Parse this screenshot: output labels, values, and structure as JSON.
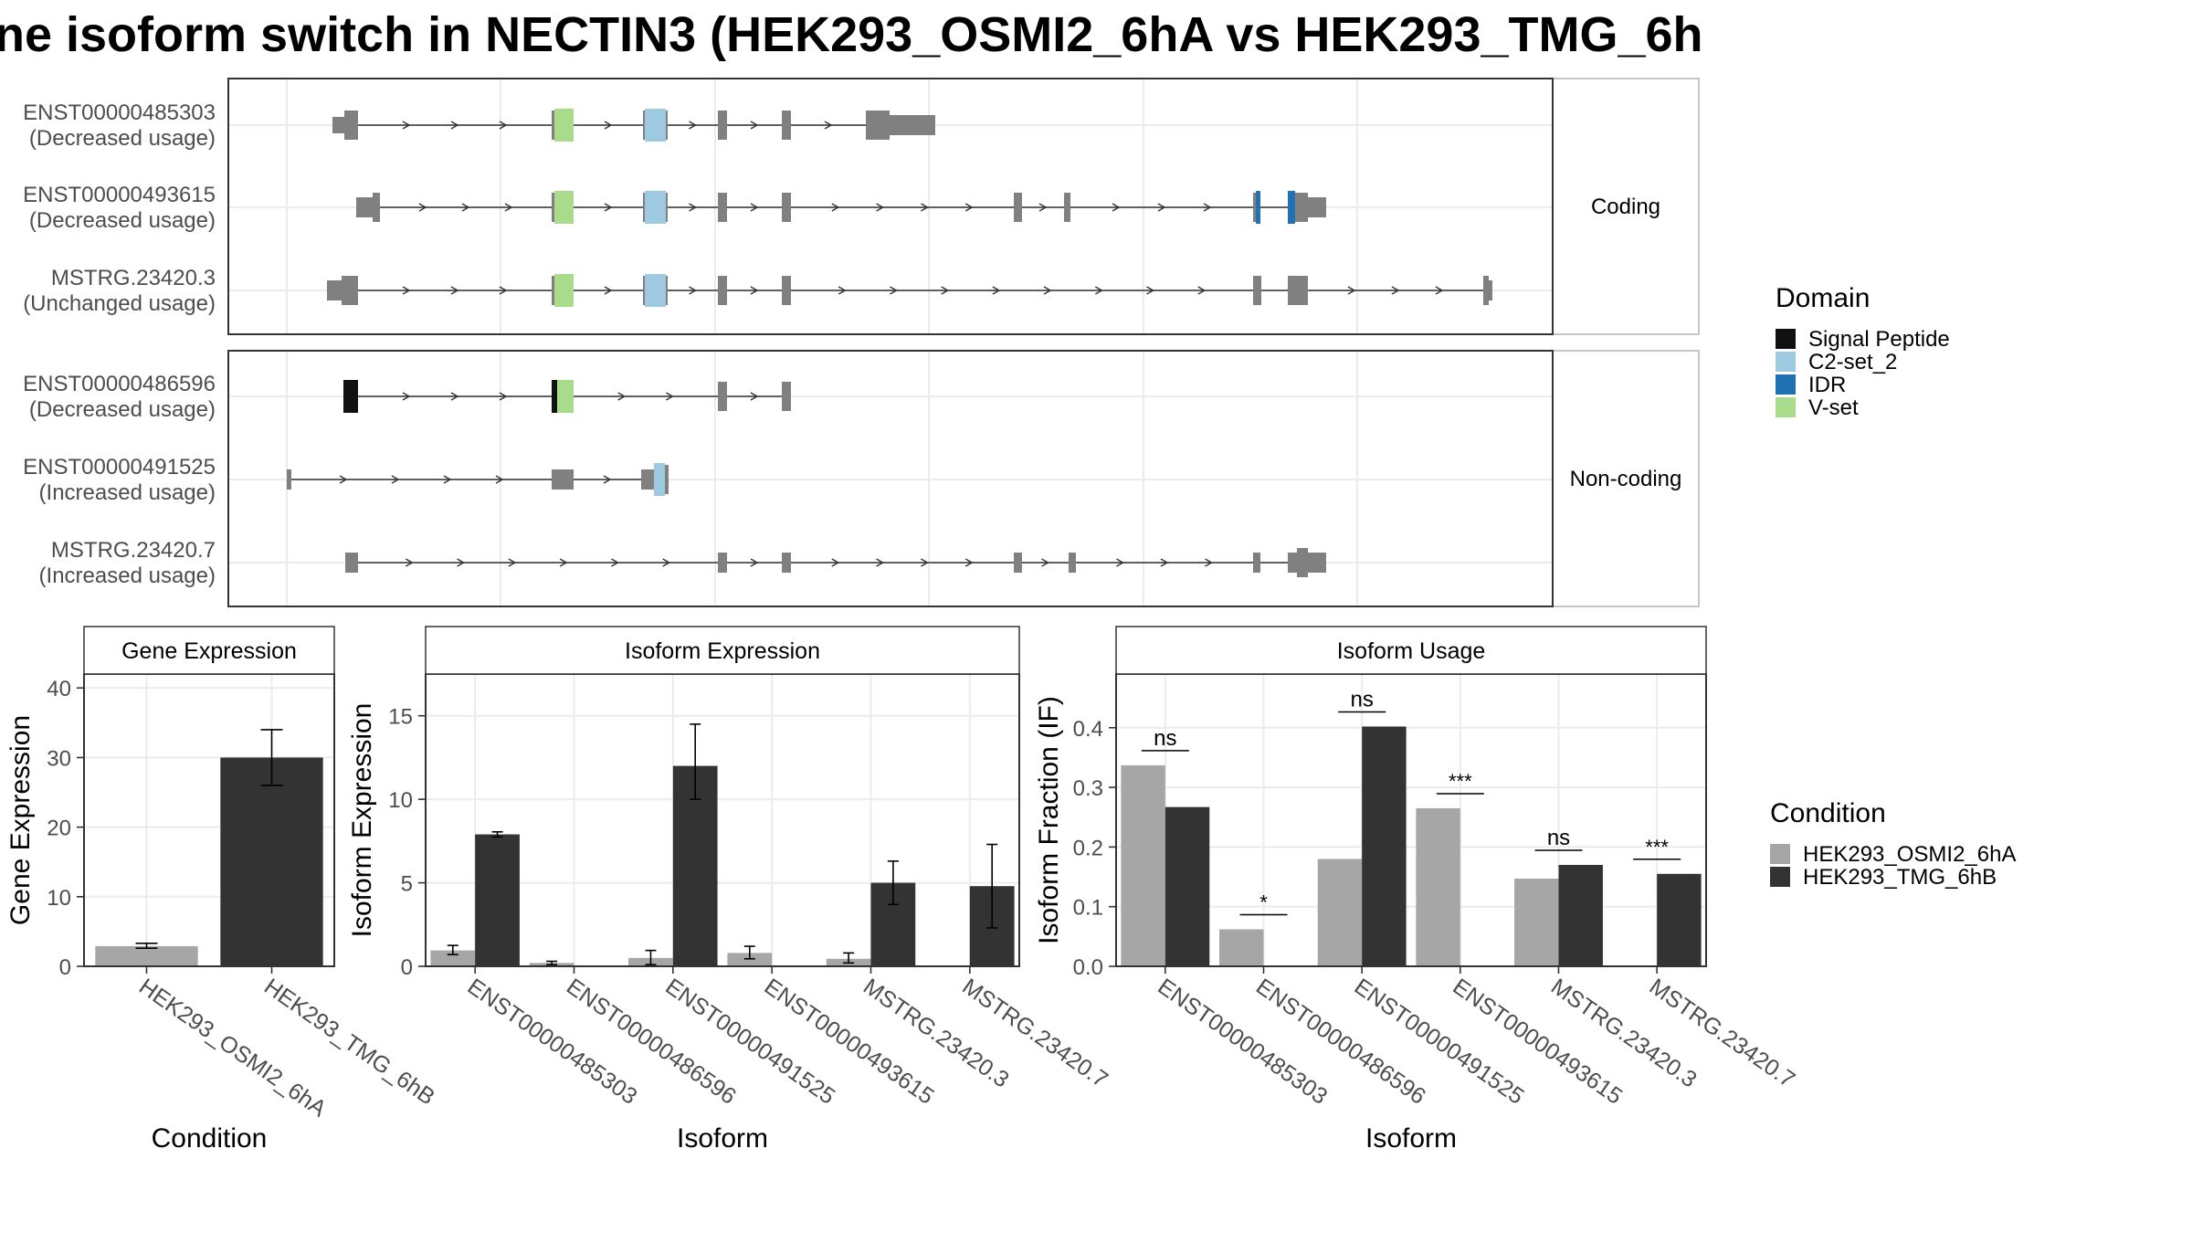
{
  "title": "ne isoform switch in NECTIN3 (HEK293_OSMI2_6hA vs HEK293_TMG_6h",
  "structure": {
    "facets": [
      {
        "label": "Coding",
        "isoforms": [
          {
            "name": "ENST00000485303",
            "usage": "(Decreased usage)"
          },
          {
            "name": "ENST00000493615",
            "usage": "(Decreased usage)"
          },
          {
            "name": "MSTRG.23420.3",
            "usage": "(Unchanged usage)"
          }
        ]
      },
      {
        "label": "Non-coding",
        "isoforms": [
          {
            "name": "ENST00000486596",
            "usage": "(Decreased usage)"
          },
          {
            "name": "ENST00000491525",
            "usage": "(Increased usage)"
          },
          {
            "name": "MSTRG.23420.7",
            "usage": "(Increased usage)"
          }
        ]
      }
    ]
  },
  "domain_legend": {
    "title": "Domain",
    "items": [
      {
        "label": "Signal Peptide",
        "color": "#111111"
      },
      {
        "label": "C2-set_2",
        "color": "#9ecae1"
      },
      {
        "label": "IDR",
        "color": "#2171b5"
      },
      {
        "label": "V-set",
        "color": "#a8dc8a"
      }
    ]
  },
  "condition_legend": {
    "title": "Condition",
    "items": [
      {
        "label": "HEK293_OSMI2_6hA",
        "color": "#a6a6a6"
      },
      {
        "label": "HEK293_TMG_6hB",
        "color": "#333333"
      }
    ]
  },
  "chart_data": [
    {
      "type": "bar",
      "title": "Gene Expression",
      "xlabel": "Condition",
      "ylabel": "Gene Expression",
      "ylim": [
        0,
        42
      ],
      "yticks": [
        0,
        10,
        20,
        30,
        40
      ],
      "categories": [
        "HEK293_OSMI2_6hA",
        "HEK293_TMG_6hB"
      ],
      "values": [
        2.9,
        30.0
      ],
      "errors": [
        [
          2.6,
          3.3
        ],
        [
          26.0,
          34.0
        ]
      ]
    },
    {
      "type": "bar",
      "title": "Isoform Expression",
      "xlabel": "Isoform",
      "ylabel": "Isoform Expression",
      "ylim": [
        0,
        17.5
      ],
      "yticks": [
        0,
        5,
        10,
        15
      ],
      "categories": [
        "ENST00000485303",
        "ENST00000486596",
        "ENST00000491525",
        "ENST00000493615",
        "MSTRG.23420.3",
        "MSTRG.23420.7"
      ],
      "series": [
        {
          "name": "HEK293_OSMI2_6hA",
          "values": [
            0.95,
            0.2,
            0.5,
            0.8,
            0.45,
            0.0
          ],
          "errors": [
            [
              0.7,
              1.25
            ],
            [
              0.1,
              0.3
            ],
            [
              0.1,
              0.95
            ],
            [
              0.45,
              1.2
            ],
            [
              0.2,
              0.8
            ],
            [
              0.0,
              0.0
            ]
          ]
        },
        {
          "name": "HEK293_TMG_6hB",
          "values": [
            7.9,
            0.0,
            12.0,
            0.0,
            5.0,
            4.8
          ],
          "errors": [
            [
              7.75,
              8.05
            ],
            [
              0.0,
              0.0
            ],
            [
              10.0,
              14.5
            ],
            [
              0.0,
              0.0
            ],
            [
              3.7,
              6.3
            ],
            [
              2.3,
              7.3
            ]
          ]
        }
      ]
    },
    {
      "type": "bar",
      "title": "Isoform Usage",
      "xlabel": "Isoform",
      "ylabel": "Isoform Fraction (IF)",
      "ylim": [
        0,
        0.49
      ],
      "yticks": [
        0.0,
        0.1,
        0.2,
        0.3,
        0.4
      ],
      "categories": [
        "ENST00000485303",
        "ENST00000486596",
        "ENST00000491525",
        "ENST00000493615",
        "MSTRG.23420.3",
        "MSTRG.23420.7"
      ],
      "series": [
        {
          "name": "HEK293_OSMI2_6hA",
          "values": [
            0.337,
            0.062,
            0.18,
            0.265,
            0.147,
            0.0
          ]
        },
        {
          "name": "HEK293_TMG_6hB",
          "values": [
            0.267,
            0.0,
            0.402,
            0.0,
            0.17,
            0.155
          ]
        }
      ],
      "significance": [
        "ns",
        "*",
        "ns",
        "***",
        "ns",
        "***"
      ]
    }
  ]
}
